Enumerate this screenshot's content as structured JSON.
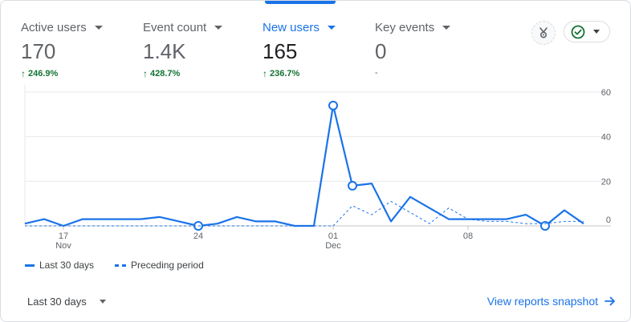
{
  "metrics": [
    {
      "label": "Active users",
      "value": "170",
      "delta": "246.9%"
    },
    {
      "label": "Event count",
      "value": "1.4K",
      "delta": "428.7%"
    },
    {
      "label": "New users",
      "value": "165",
      "delta": "236.7%"
    },
    {
      "label": "Key events",
      "value": "0",
      "delta": "-"
    }
  ],
  "legend": {
    "current": "Last 30 days",
    "previous": "Preceding period"
  },
  "footer": {
    "date_range": "Last 30 days",
    "snapshot_link": "View reports snapshot"
  },
  "colors": {
    "accent": "#1a73e8",
    "positive": "#137333",
    "status_check": "#137333"
  },
  "icons": {
    "insights": "insights-icon",
    "status": "check-circle-icon",
    "arrow": "arrow-right-icon"
  },
  "chart_data": {
    "type": "line",
    "x_tick_labels": [
      {
        "label": "17",
        "sub": "Nov",
        "index": 2
      },
      {
        "label": "24",
        "sub": "",
        "index": 9
      },
      {
        "label": "01",
        "sub": "Dec",
        "index": 16
      },
      {
        "label": "08",
        "sub": "",
        "index": 23
      }
    ],
    "y_ticks": [
      0,
      20,
      40,
      60
    ],
    "ylim": [
      0,
      60
    ],
    "series": [
      {
        "name": "Last 30 days",
        "style": "solid",
        "values": [
          1,
          3,
          0,
          3,
          3,
          3,
          3,
          4,
          2,
          0,
          1,
          4,
          2,
          2,
          0,
          0,
          54,
          18,
          19,
          2,
          13,
          8,
          3,
          3,
          3,
          3,
          5,
          0,
          7,
          1
        ],
        "markers": [
          9,
          16,
          17,
          27
        ]
      },
      {
        "name": "Preceding period",
        "style": "dashed",
        "values": [
          0,
          0,
          0,
          0,
          0,
          0,
          0,
          0,
          0,
          0,
          0,
          0,
          0,
          0,
          0,
          0,
          0,
          9,
          5,
          11,
          6,
          1,
          8,
          3,
          2,
          2,
          1,
          1,
          2,
          2
        ]
      }
    ]
  }
}
